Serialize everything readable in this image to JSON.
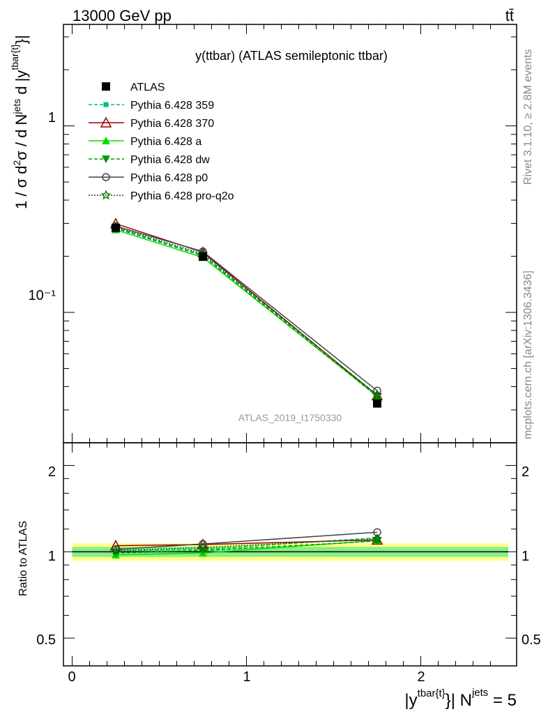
{
  "header": {
    "left": "13000 GeV pp",
    "right": "tt̄"
  },
  "side": {
    "rivet": "Rivet 3.1.10, ≥ 2.8M events",
    "mcplots": "mcplots.cern.ch [arXiv:1306.3436]"
  },
  "chart_data": [
    {
      "type": "line",
      "title": "y(ttbar) (ATLAS semileptonic ttbar)",
      "watermark": "ATLAS_2019_I1750330",
      "ylabel": "1 / σ d²σ / d N^jets d |y^tbar{t}|",
      "yscale": "log",
      "ylim": [
        0.02,
        3.5
      ],
      "xlim": [
        -0.05,
        2.55
      ],
      "grid": false,
      "legend_position": "top-left",
      "x": [
        0.25,
        0.75,
        1.75
      ],
      "series": [
        {
          "name": "ATLAS",
          "values": [
            0.284,
            0.199,
            0.0325
          ],
          "color": "#000000",
          "marker": "square-filled",
          "line": "none"
        },
        {
          "name": "Pythia 6.428 359",
          "values": [
            0.286,
            0.203,
            0.0362
          ],
          "color": "#00b88a",
          "marker": "square-small",
          "line": "dashed"
        },
        {
          "name": "Pythia 6.428 370",
          "values": [
            0.299,
            0.21,
            0.0358
          ],
          "color": "#990000",
          "marker": "triangle-open",
          "line": "solid"
        },
        {
          "name": "Pythia 6.428 a",
          "values": [
            0.277,
            0.197,
            0.0356
          ],
          "color": "#00dd00",
          "marker": "triangle-filled",
          "line": "solid"
        },
        {
          "name": "Pythia 6.428 dw",
          "values": [
            0.282,
            0.201,
            0.0354
          ],
          "color": "#009900",
          "marker": "triangle-down",
          "line": "dashed"
        },
        {
          "name": "Pythia 6.428 p0",
          "values": [
            0.29,
            0.212,
            0.038
          ],
          "color": "#444444",
          "marker": "circle-open",
          "line": "solid"
        },
        {
          "name": "Pythia 6.428 pro-q2o",
          "values": [
            0.287,
            0.206,
            0.036
          ],
          "color": "#006600",
          "marker": "star-open",
          "line": "dotted"
        }
      ]
    },
    {
      "type": "line",
      "ylabel": "Ratio to ATLAS",
      "xlabel": "|y^tbar{t}| N^jets = 5",
      "ylim": [
        0.4,
        2.4
      ],
      "yscale": "log",
      "xlim": [
        -0.05,
        2.55
      ],
      "band": {
        "inner": [
          0.96,
          1.04
        ],
        "outer": [
          0.93,
          1.07
        ],
        "inner_color": "#88ee88",
        "outer_color": "#ffff88"
      },
      "x": [
        0.25,
        0.75,
        1.75
      ],
      "series": [
        {
          "name": "Pythia 6.428 359",
          "values": [
            1.005,
            1.02,
            1.12
          ]
        },
        {
          "name": "Pythia 6.428 370",
          "values": [
            1.05,
            1.06,
            1.1
          ]
        },
        {
          "name": "Pythia 6.428 a",
          "values": [
            0.975,
            0.99,
            1.095
          ]
        },
        {
          "name": "Pythia 6.428 dw",
          "values": [
            0.99,
            1.01,
            1.09
          ]
        },
        {
          "name": "Pythia 6.428 p0",
          "values": [
            1.02,
            1.065,
            1.17
          ]
        },
        {
          "name": "Pythia 6.428 pro-q2o",
          "values": [
            1.01,
            1.035,
            1.11
          ]
        }
      ]
    }
  ],
  "ticks": {
    "x": [
      "0",
      "1",
      "2"
    ],
    "main_y": [
      "1",
      "10⁻¹"
    ],
    "ratio_y": [
      "2",
      "1",
      "0.5"
    ]
  },
  "axis_text": {
    "ylabel_main_parts": [
      "1 / σ d",
      "2",
      "σ / d N",
      "jets",
      " d |y",
      "tbar{t}",
      "}|"
    ],
    "xlabel_parts": [
      "|y",
      "tbar{t}",
      "}| N",
      "jets",
      " = 5"
    ]
  }
}
